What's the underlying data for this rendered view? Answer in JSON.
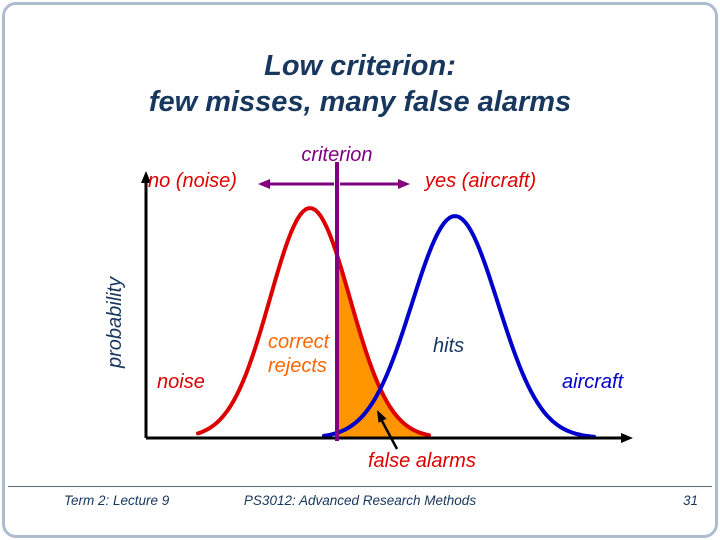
{
  "slide": {
    "title_line1": "Low criterion:",
    "title_line2": "few misses, many false alarms"
  },
  "diagram": {
    "criterion_label": "criterion",
    "decision_left": "no (noise)",
    "decision_right": "yes (aircraft)",
    "y_axis_label": "probability",
    "region_left_label": "correct rejects",
    "region_right_label": "hits",
    "curve_left_label": "noise",
    "curve_right_label": "aircraft",
    "shaded_region_label": "false alarms"
  },
  "footer": {
    "left": "Term 2: Lecture 9",
    "center": "PS3012: Advanced Research Methods",
    "page": "31"
  },
  "colors": {
    "noise_red": "#dd0000",
    "aircraft_blue": "#0000cc",
    "criterion_purple": "#800080",
    "shade_orange": "#ff9500",
    "correct_rejects_orange": "#ff6600",
    "title_navy": "#17375e",
    "axis_black": "#000000"
  }
}
